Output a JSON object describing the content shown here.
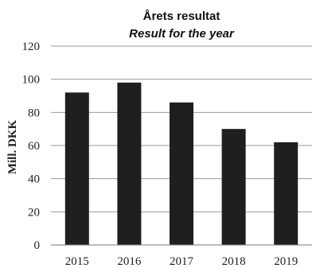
{
  "chart_data": {
    "type": "bar",
    "title": "Årets resultat",
    "subtitle": "Result for the year",
    "xlabel": "",
    "ylabel": "Mill. DKK",
    "categories": [
      "2015",
      "2016",
      "2017",
      "2018",
      "2019"
    ],
    "values": [
      92,
      98,
      86,
      70,
      62
    ],
    "ylim": [
      0,
      120
    ],
    "yticks": [
      0,
      20,
      40,
      60,
      80,
      100,
      120
    ],
    "grid": true,
    "bar_color": "#1f1f1f"
  }
}
